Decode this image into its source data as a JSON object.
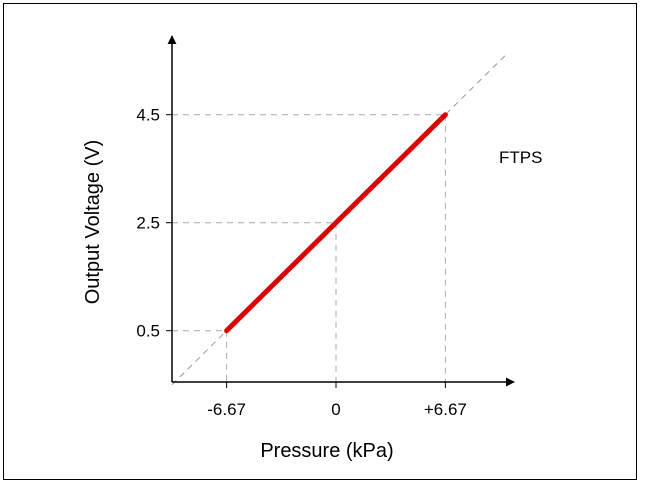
{
  "chart_data": {
    "type": "line",
    "title": "",
    "xlabel": "Pressure (kPa)",
    "ylabel": "Output Voltage (V)",
    "annotation": "FTPS",
    "xlim": [
      -10.0,
      15.5
    ],
    "ylim": [
      -0.45,
      7.1
    ],
    "x_ticks": [
      {
        "value": -6.67,
        "label": "-6.67"
      },
      {
        "value": 0,
        "label": "0"
      },
      {
        "value": 6.67,
        "label": "+6.67"
      }
    ],
    "y_ticks": [
      {
        "value": 0.5,
        "label": "0.5"
      },
      {
        "value": 2.5,
        "label": "2.5"
      },
      {
        "value": 4.5,
        "label": "4.5"
      }
    ],
    "series": [
      {
        "color": "#dd0000",
        "x": [
          -6.67,
          6.67
        ],
        "y": [
          0.5,
          4.5
        ]
      }
    ],
    "extension_line": {
      "color": "#999999",
      "x": [
        -10.0,
        10.5
      ],
      "y": [
        -0.5,
        5.65
      ]
    },
    "grid": false,
    "axis_color": "#000000",
    "guide_color": "#aaaaaa"
  }
}
